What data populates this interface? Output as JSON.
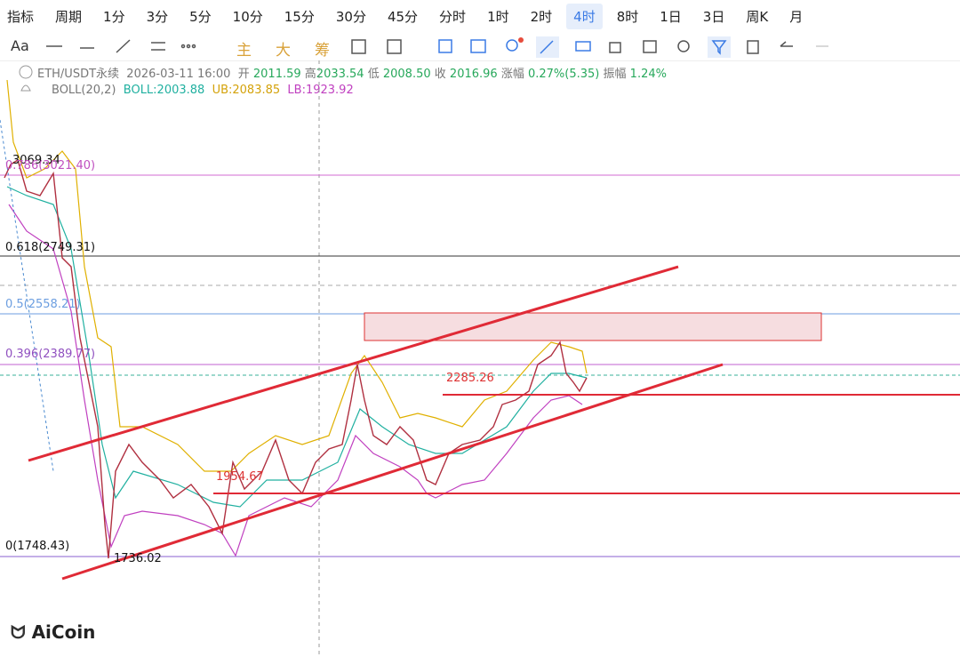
{
  "toolbar": {
    "items": [
      "指标",
      "周期",
      "1分",
      "3分",
      "5分",
      "10分",
      "15分",
      "30分",
      "45分",
      "分时",
      "1时",
      "2时",
      "4时",
      "8时",
      "1日",
      "3日",
      "周K",
      "月"
    ]
  },
  "drawing_toolbar": {
    "font": "Aa",
    "labels": [
      "主",
      "大",
      "筹"
    ]
  },
  "info": {
    "symbol": "ETH/USDT永续",
    "datetime": "2026-03-11 16:00",
    "open_label": "开",
    "open": "2011.59",
    "high_label": "高",
    "high": "2033.54",
    "low_label": "低",
    "low": "2008.50",
    "close_label": "收",
    "close": "2016.96",
    "change_label": "涨幅",
    "change": "0.27%(5.35)",
    "amplitude_label": "振幅",
    "amplitude": "1.24%"
  },
  "boll": {
    "name": "BOLL(20,2)",
    "mid": "BOLL:2003.88",
    "ub": "UB:2083.85",
    "lb": "LB:1923.92"
  },
  "annotations": [
    "3069.34",
    "0.786(3021.40)",
    "0.618(2749.31)",
    "0.5(2558.21)",
    "0.396(2389.77)",
    "2285.26",
    "1954.67",
    "0(1748.43)",
    "1736.02"
  ],
  "logo": "AiCoin"
}
